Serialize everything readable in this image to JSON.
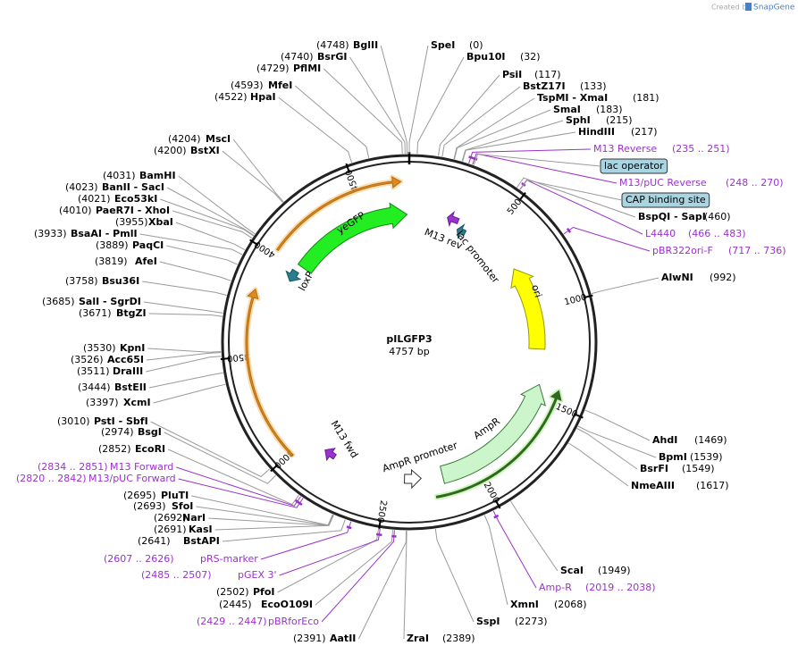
{
  "credit": {
    "prefix": "Created by",
    "brand": "SnapGene"
  },
  "plasmid": {
    "name": "pILGFP3",
    "length": "4757 bp"
  },
  "ring_ticks": [
    "500",
    "1000",
    "1500",
    "2000",
    "2500",
    "3000",
    "3500",
    "4000",
    "4500"
  ],
  "enzymes": [
    {
      "name": "SpeI",
      "pos": "(0)"
    },
    {
      "name": "Bpu10I",
      "pos": "(32)"
    },
    {
      "name": "PsiI",
      "pos": "(117)"
    },
    {
      "name": "BstZ17I",
      "pos": "(133)"
    },
    {
      "name": "TspMI  -  XmaI",
      "pos": "(181)"
    },
    {
      "name": "SmaI",
      "pos": "(183)"
    },
    {
      "name": "SphI",
      "pos": "(215)"
    },
    {
      "name": "HindIII",
      "pos": "(217)"
    },
    {
      "name": "BspQI  -  SapI",
      "pos": "(460)"
    },
    {
      "name": "AlwNI",
      "pos": "(992)"
    },
    {
      "name": "AhdI",
      "pos": "(1469)"
    },
    {
      "name": "BpmI",
      "pos": "(1539)"
    },
    {
      "name": "BsrFI",
      "pos": "(1549)"
    },
    {
      "name": "NmeAIII",
      "pos": "(1617)"
    },
    {
      "name": "ScaI",
      "pos": "(1949)"
    },
    {
      "name": "XmnI",
      "pos": "(2068)"
    },
    {
      "name": "SspI",
      "pos": "(2273)"
    },
    {
      "name": "ZraI",
      "pos": "(2389)"
    },
    {
      "name": "AatII",
      "pos": "(2391)"
    },
    {
      "name": "EcoO109I",
      "pos": "(2445)"
    },
    {
      "name": "PfoI",
      "pos": "(2502)"
    },
    {
      "name": "BstAPI",
      "pos": "(2641)"
    },
    {
      "name": "KasI",
      "pos": "(2691)"
    },
    {
      "name": "NarI",
      "pos": "(2692)"
    },
    {
      "name": "SfoI",
      "pos": "(2693)"
    },
    {
      "name": "PluTI",
      "pos": "(2695)"
    },
    {
      "name": "EcoRI",
      "pos": "(2852)"
    },
    {
      "name": "BsgI",
      "pos": "(2974)"
    },
    {
      "name": "PstI  -  SbfI",
      "pos": "(3010)"
    },
    {
      "name": "XcmI",
      "pos": "(3397)"
    },
    {
      "name": "BstEII",
      "pos": "(3444)"
    },
    {
      "name": "DraIII",
      "pos": "(3511)"
    },
    {
      "name": "Acc65I",
      "pos": "(3526)"
    },
    {
      "name": "KpnI",
      "pos": "(3530)"
    },
    {
      "name": "BtgZI",
      "pos": "(3671)"
    },
    {
      "name": "SalI  -  SgrDI",
      "pos": "(3685)"
    },
    {
      "name": "Bsu36I",
      "pos": "(3758)"
    },
    {
      "name": "AfeI",
      "pos": "(3819)"
    },
    {
      "name": "PaqCI",
      "pos": "(3889)"
    },
    {
      "name": "BsaAI  -  PmlI",
      "pos": "(3933)"
    },
    {
      "name": "XbaI",
      "pos": "(3955)"
    },
    {
      "name": "PaeR7I  -  XhoI",
      "pos": "(4010)"
    },
    {
      "name": "Eco53kI",
      "pos": "(4021)"
    },
    {
      "name": "BanII  -  SacI",
      "pos": "(4023)"
    },
    {
      "name": "BamHI",
      "pos": "(4031)"
    },
    {
      "name": "BstXI",
      "pos": "(4200)"
    },
    {
      "name": "MscI",
      "pos": "(4204)"
    },
    {
      "name": "HpaI",
      "pos": "(4522)"
    },
    {
      "name": "MfeI",
      "pos": "(4593)"
    },
    {
      "name": "PflMI",
      "pos": "(4729)"
    },
    {
      "name": "BsrGI",
      "pos": "(4740)"
    },
    {
      "name": "BglII",
      "pos": "(4748)"
    }
  ],
  "primers": [
    {
      "name": "M13 Reverse",
      "range": "(235 .. 251)"
    },
    {
      "name": "M13/pUC Reverse",
      "range": "(248 .. 270)"
    },
    {
      "name": "L4440",
      "range": "(466 .. 483)"
    },
    {
      "name": "pBR322ori-F",
      "range": "(717 .. 736)"
    },
    {
      "name": "Amp-R",
      "range": "(2019 .. 2038)"
    },
    {
      "name": "pBRforEco",
      "range": "(2429 .. 2447)"
    },
    {
      "name": "pGEX 3'",
      "range": "(2485 .. 2507)"
    },
    {
      "name": "pRS-marker",
      "range": "(2607 .. 2626)"
    },
    {
      "name": "M13/pUC Forward",
      "range": "(2820 .. 2842)"
    },
    {
      "name": "M13 Forward",
      "range": "(2834 .. 2851)"
    }
  ],
  "boxed_features": [
    "lac operator",
    "CAP binding site"
  ],
  "map_features": [
    "yeGFP",
    "loxP",
    "M13 rev",
    "lac promoter",
    "ori",
    "AmpR",
    "AmpR promoter",
    "M13 fwd"
  ]
}
